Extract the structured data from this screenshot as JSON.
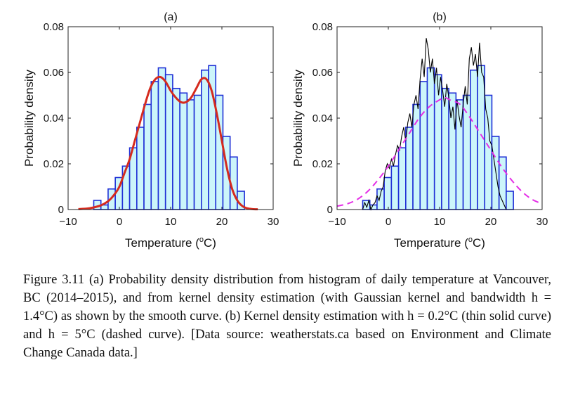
{
  "chart_data": [
    {
      "type": "bar",
      "title": "(a)",
      "xlabel": "Temperature (",
      "xlabel_sup": "o",
      "xlabel_end": "C)",
      "ylabel": "Probability density",
      "xlim": [
        -10,
        30
      ],
      "ylim": [
        0,
        0.08
      ],
      "xticks": [
        "−10",
        "0",
        "10",
        "20",
        "30"
      ],
      "yticks": [
        "0",
        "0.02",
        "0.04",
        "0.06",
        "0.08"
      ],
      "xtick_values": [
        -10,
        0,
        10,
        20,
        30
      ],
      "ytick_values": [
        0,
        0.02,
        0.04,
        0.06,
        0.08
      ],
      "grid": false,
      "bins": {
        "start": -5,
        "width": 1.4
      },
      "hist_values": [
        0.004,
        0.002,
        0.009,
        0.014,
        0.019,
        0.027,
        0.036,
        0.046,
        0.056,
        0.062,
        0.059,
        0.053,
        0.051,
        0.048,
        0.05,
        0.061,
        0.063,
        0.05,
        0.032,
        0.023,
        0.008
      ],
      "series": [
        {
          "x": [
            -8,
            -6,
            -4,
            -3,
            -2,
            -1,
            0,
            1,
            2,
            3,
            4,
            5,
            6,
            7,
            8,
            9,
            10,
            11,
            12,
            13,
            14,
            15,
            16,
            17,
            18,
            19,
            20,
            21,
            22,
            23,
            24,
            25,
            26,
            27
          ],
          "values": [
            0.0002,
            0.0005,
            0.0015,
            0.0025,
            0.004,
            0.0065,
            0.01,
            0.016,
            0.022,
            0.03,
            0.038,
            0.046,
            0.053,
            0.057,
            0.058,
            0.056,
            0.052,
            0.049,
            0.047,
            0.047,
            0.049,
            0.053,
            0.057,
            0.057,
            0.052,
            0.042,
            0.03,
            0.018,
            0.009,
            0.004,
            0.0015,
            0.0005,
            0.0002,
            0.0001
          ]
        }
      ]
    },
    {
      "type": "bar",
      "title": "(b)",
      "xlabel": "Temperature (",
      "xlabel_sup": "o",
      "xlabel_end": "C)",
      "ylabel": "Probability density",
      "xlim": [
        -10,
        30
      ],
      "ylim": [
        0,
        0.08
      ],
      "xticks": [
        "−10",
        "0",
        "10",
        "20",
        "30"
      ],
      "yticks": [
        "0",
        "0.02",
        "0.04",
        "0.06",
        "0.08"
      ],
      "xtick_values": [
        -10,
        0,
        10,
        20,
        30
      ],
      "ytick_values": [
        0,
        0.02,
        0.04,
        0.06,
        0.08
      ],
      "grid": false,
      "bins": {
        "start": -5,
        "width": 1.4
      },
      "hist_values": [
        0.004,
        0.002,
        0.009,
        0.014,
        0.019,
        0.027,
        0.036,
        0.046,
        0.056,
        0.062,
        0.059,
        0.053,
        0.051,
        0.048,
        0.05,
        0.061,
        0.063,
        0.05,
        0.032,
        0.023,
        0.008
      ],
      "series": [
        {
          "style": "solid-thin",
          "x": [
            -5,
            -4.6,
            -4.2,
            -3.8,
            -3.4,
            -3,
            -2.6,
            -2.2,
            -1.8,
            -1.4,
            -1,
            -0.6,
            -0.2,
            0.2,
            0.6,
            1,
            1.4,
            1.8,
            2.2,
            2.6,
            3,
            3.4,
            3.8,
            4.2,
            4.6,
            5,
            5.4,
            5.8,
            6.2,
            6.6,
            7,
            7.4,
            7.8,
            8.2,
            8.6,
            9,
            9.4,
            9.8,
            10.2,
            10.6,
            11,
            11.4,
            11.8,
            12.2,
            12.6,
            13,
            13.4,
            13.8,
            14.2,
            14.6,
            15,
            15.4,
            15.8,
            16.2,
            16.6,
            17,
            17.4,
            17.8,
            18.2,
            18.6,
            19,
            19.4,
            19.8,
            20.2,
            20.6,
            21,
            21.4,
            21.8,
            22.2,
            22.6,
            23
          ],
          "values": [
            0,
            0.003,
            0.001,
            0.004,
            0,
            0.002,
            0.003,
            0.006,
            0.004,
            0.008,
            0.01,
            0.017,
            0.02,
            0.018,
            0.022,
            0.019,
            0.024,
            0.028,
            0.026,
            0.032,
            0.036,
            0.03,
            0.038,
            0.042,
            0.036,
            0.046,
            0.05,
            0.044,
            0.057,
            0.066,
            0.058,
            0.075,
            0.07,
            0.06,
            0.066,
            0.055,
            0.062,
            0.05,
            0.058,
            0.052,
            0.045,
            0.055,
            0.049,
            0.04,
            0.045,
            0.035,
            0.048,
            0.041,
            0.036,
            0.046,
            0.054,
            0.046,
            0.066,
            0.071,
            0.063,
            0.068,
            0.058,
            0.073,
            0.06,
            0.058,
            0.044,
            0.04,
            0.03,
            0.028,
            0.022,
            0.016,
            0.01,
            0.006,
            0.004,
            0.002,
            0
          ]
        },
        {
          "style": "dashed",
          "x": [
            -10,
            -8,
            -6,
            -4,
            -2,
            0,
            2,
            4,
            6,
            8,
            10,
            11,
            12,
            14,
            16,
            18,
            20,
            22,
            24,
            26,
            28,
            30
          ],
          "values": [
            0.0015,
            0.0025,
            0.0045,
            0.008,
            0.013,
            0.019,
            0.026,
            0.033,
            0.04,
            0.045,
            0.048,
            0.049,
            0.048,
            0.046,
            0.04,
            0.033,
            0.026,
            0.019,
            0.013,
            0.008,
            0.0045,
            0.0025
          ]
        }
      ]
    }
  ],
  "caption": "Figure 3.11 (a) Probability density distribution from histogram of daily temperature at Vancouver, BC (2014–2015), and from kernel density estimation (with Gaussian kernel and bandwidth h = 1.4°C) as shown by the smooth curve. (b) Kernel density estimation with h = 0.2°C (thin solid curve) and h = 5°C (dashed curve). [Data source: weatherstats.ca based on Environment and Climate Change Canada data.]",
  "colors": {
    "bar_fill": "#ccf5fa",
    "bar_edge": "#1f2fd6",
    "kde_a": "#d52b1e",
    "kde_thin": "#000000",
    "kde_dashed": "#e42fe6"
  }
}
